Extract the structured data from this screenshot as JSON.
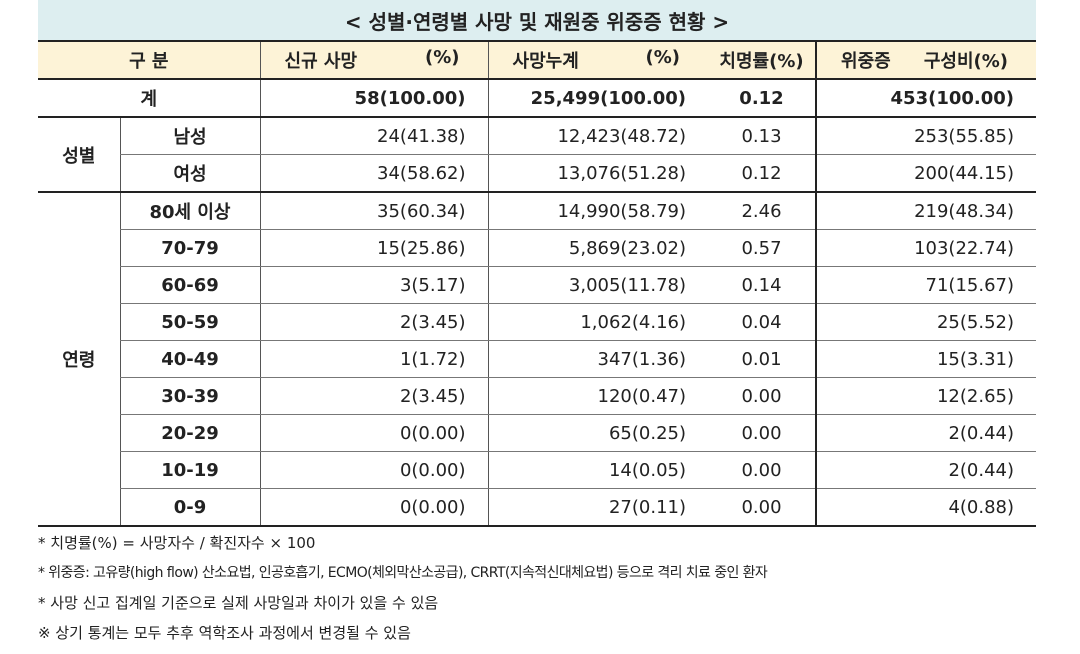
{
  "title": "< 성별·연령별 사망 및 재원중 위중증 현황 >",
  "headers": {
    "category": "구 분",
    "new_deaths": "신규 사망",
    "new_deaths_pct": "(%)",
    "cum_deaths": "사망누계",
    "cum_deaths_pct": "(%)",
    "fatality": "치명률(%)",
    "severe": "위중증",
    "severe_pct": "구성비(%)"
  },
  "total": {
    "label": "계",
    "new": "58(100.00)",
    "cum": "25,499(100.00)",
    "rate": "0.12",
    "severe": "453(100.00)"
  },
  "sex_group": "성별",
  "sex_rows": [
    {
      "label": "남성",
      "new": "24(41.38)",
      "cum": "12,423(48.72)",
      "rate": "0.13",
      "severe": "253(55.85)"
    },
    {
      "label": "여성",
      "new": "34(58.62)",
      "cum": "13,076(51.28)",
      "rate": "0.12",
      "severe": "200(44.15)"
    }
  ],
  "age_group": "연령",
  "age_rows": [
    {
      "label": "80세 이상",
      "new": "35(60.34)",
      "cum": "14,990(58.79)",
      "rate": "2.46",
      "severe": "219(48.34)"
    },
    {
      "label": "70-79",
      "new": "15(25.86)",
      "cum": "5,869(23.02)",
      "rate": "0.57",
      "severe": "103(22.74)"
    },
    {
      "label": "60-69",
      "new": "3(5.17)",
      "cum": "3,005(11.78)",
      "rate": "0.14",
      "severe": "71(15.67)"
    },
    {
      "label": "50-59",
      "new": "2(3.45)",
      "cum": "1,062(4.16)",
      "rate": "0.04",
      "severe": "25(5.52)"
    },
    {
      "label": "40-49",
      "new": "1(1.72)",
      "cum": "347(1.36)",
      "rate": "0.01",
      "severe": "15(3.31)"
    },
    {
      "label": "30-39",
      "new": "2(3.45)",
      "cum": "120(0.47)",
      "rate": "0.00",
      "severe": "12(2.65)"
    },
    {
      "label": "20-29",
      "new": "0(0.00)",
      "cum": "65(0.25)",
      "rate": "0.00",
      "severe": "2(0.44)"
    },
    {
      "label": "10-19",
      "new": "0(0.00)",
      "cum": "14(0.05)",
      "rate": "0.00",
      "severe": "2(0.44)"
    },
    {
      "label": "0-9",
      "new": "0(0.00)",
      "cum": "27(0.11)",
      "rate": "0.00",
      "severe": "4(0.88)"
    }
  ],
  "notes": [
    "* 치명률(%) = 사망자수 / 확진자수 × 100",
    "* 위중증: 고유량(high flow) 산소요법, 인공호흡기, ECMO(체외막산소공급), CRRT(지속적신대체요법) 등으로 격리 치료 중인 환자",
    "* 사망 신고 집계일 기준으로 실제 사망일과 차이가 있을 수 있음",
    "※ 상기 통계는 모두 추후 역학조사 과정에서 변경될 수 있음"
  ]
}
